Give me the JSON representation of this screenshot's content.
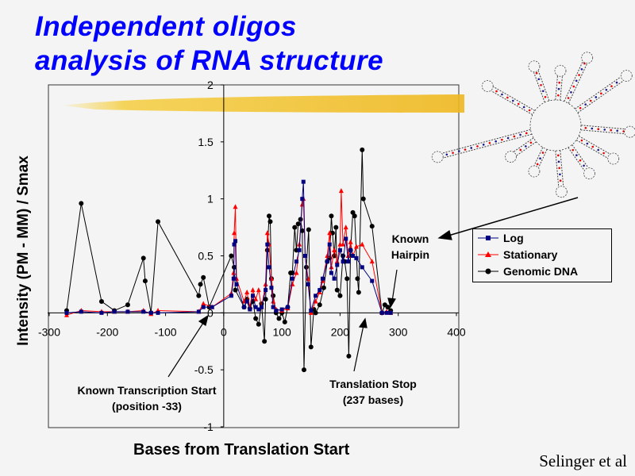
{
  "slide": {
    "title_line1": "Independent oligos",
    "title_line2": "analysis of RNA structure",
    "credit": "Selinger et al"
  },
  "annotations": {
    "transcription_start_line1": "Known Transcription Start",
    "transcription_start_line2": "(position -33)",
    "translation_stop_line1": "Translation Stop",
    "translation_stop_line2": "(237 bases)",
    "hairpin_line1": "Known",
    "hairpin_line2": "Hairpin"
  },
  "colors": {
    "title": "#0000ff",
    "log": "#000080",
    "stationary": "#ff0000",
    "genomic": "#000000",
    "highlight": "#f2c230"
  },
  "chart_data": {
    "type": "line",
    "title": "",
    "xlabel": "Bases from Translation Start",
    "ylabel": "Intensity (PM - MM) / Smax",
    "xlim": [
      -300,
      400
    ],
    "ylim": [
      -1,
      2
    ],
    "xticks": [
      "-300",
      "-200",
      "-100",
      "0",
      "100",
      "200",
      "300",
      "400"
    ],
    "yticks": [
      "2",
      "1.5",
      "1",
      "0.5",
      "0",
      "-0.5",
      "-1"
    ],
    "grid": false,
    "legend_position": "right",
    "series": [
      {
        "name": "Log",
        "marker": "square",
        "color": "#000080",
        "points": [
          [
            -270,
            0
          ],
          [
            -245,
            0.01
          ],
          [
            -210,
            0
          ],
          [
            -188,
            0.01
          ],
          [
            -165,
            0.01
          ],
          [
            -138,
            0.01
          ],
          [
            -125,
            0
          ],
          [
            -113,
            0
          ],
          [
            -43,
            0.01
          ],
          [
            -35,
            0.05
          ],
          [
            -20,
            0.05
          ],
          [
            13,
            0.15
          ],
          [
            17,
            0.3
          ],
          [
            18,
            0.6
          ],
          [
            20,
            0.63
          ],
          [
            22,
            0.25
          ],
          [
            35,
            0.05
          ],
          [
            40,
            0.1
          ],
          [
            45,
            0.03
          ],
          [
            50,
            0.15
          ],
          [
            55,
            0.05
          ],
          [
            60,
            0.03
          ],
          [
            65,
            0.05
          ],
          [
            72,
            0.2
          ],
          [
            75,
            0.6
          ],
          [
            78,
            0.4
          ],
          [
            82,
            0.22
          ],
          [
            85,
            0.05
          ],
          [
            90,
            0.02
          ],
          [
            100,
            0.03
          ],
          [
            110,
            0.05
          ],
          [
            118,
            0.3
          ],
          [
            125,
            0.45
          ],
          [
            130,
            0.55
          ],
          [
            135,
            1.0
          ],
          [
            137,
            1.15
          ],
          [
            140,
            0.5
          ],
          [
            145,
            0.25
          ],
          [
            150,
            0.02
          ],
          [
            158,
            0.15
          ],
          [
            165,
            0.2
          ],
          [
            170,
            0.3
          ],
          [
            178,
            0.45
          ],
          [
            182,
            0.6
          ],
          [
            185,
            0.35
          ],
          [
            190,
            0.3
          ],
          [
            195,
            0.42
          ],
          [
            200,
            0.55
          ],
          [
            205,
            0.45
          ],
          [
            210,
            0.65
          ],
          [
            214,
            0.45
          ],
          [
            218,
            0.55
          ],
          [
            222,
            0.5
          ],
          [
            228,
            0.48
          ],
          [
            238,
            0.4
          ],
          [
            255,
            0.28
          ],
          [
            272,
            0
          ],
          [
            280,
            0
          ],
          [
            287,
            0
          ]
        ]
      },
      {
        "name": "Stationary",
        "marker": "triangle",
        "color": "#ff0000",
        "points": [
          [
            -270,
            -0.02
          ],
          [
            -245,
            0.02
          ],
          [
            -210,
            0.01
          ],
          [
            -188,
            0.01
          ],
          [
            -165,
            0.01
          ],
          [
            -138,
            0.02
          ],
          [
            -125,
            -0.01
          ],
          [
            -113,
            0.02
          ],
          [
            -43,
            0.01
          ],
          [
            -35,
            0.08
          ],
          [
            -20,
            0.05
          ],
          [
            13,
            0.17
          ],
          [
            17,
            0.35
          ],
          [
            18,
            0.7
          ],
          [
            20,
            0.93
          ],
          [
            22,
            0.3
          ],
          [
            35,
            0.1
          ],
          [
            40,
            0.18
          ],
          [
            45,
            0.05
          ],
          [
            50,
            0.2
          ],
          [
            55,
            0.12
          ],
          [
            60,
            0.2
          ],
          [
            65,
            0.05
          ],
          [
            72,
            0.25
          ],
          [
            75,
            0.7
          ],
          [
            78,
            0.6
          ],
          [
            82,
            0.3
          ],
          [
            85,
            0.1
          ],
          [
            90,
            0.03
          ],
          [
            100,
            0.02
          ],
          [
            110,
            0.04
          ],
          [
            118,
            0.25
          ],
          [
            125,
            0.35
          ],
          [
            130,
            0.6
          ],
          [
            135,
            0.95
          ],
          [
            137,
            1.0
          ],
          [
            140,
            0.5
          ],
          [
            145,
            0.3
          ],
          [
            150,
            0.0
          ],
          [
            158,
            0.1
          ],
          [
            165,
            0.18
          ],
          [
            170,
            0.28
          ],
          [
            178,
            0.5
          ],
          [
            182,
            0.7
          ],
          [
            185,
            0.4
          ],
          [
            190,
            0.55
          ],
          [
            195,
            0.45
          ],
          [
            200,
            0.6
          ],
          [
            202,
            1.07
          ],
          [
            205,
            0.6
          ],
          [
            210,
            0.75
          ],
          [
            214,
            0.5
          ],
          [
            218,
            0.62
          ],
          [
            222,
            0.5
          ],
          [
            228,
            0.58
          ],
          [
            238,
            0.6
          ],
          [
            255,
            0.45
          ],
          [
            272,
            0
          ],
          [
            280,
            0.01
          ],
          [
            287,
            0
          ]
        ]
      },
      {
        "name": "Genomic DNA",
        "marker": "circle",
        "color": "#000000",
        "points": [
          [
            -270,
            0.02
          ],
          [
            -245,
            0.96
          ],
          [
            -210,
            0.1
          ],
          [
            -188,
            0.02
          ],
          [
            -165,
            0.07
          ],
          [
            -138,
            0.48
          ],
          [
            -135,
            0.28
          ],
          [
            -125,
            0.0
          ],
          [
            -113,
            0.8
          ],
          [
            -43,
            0.15
          ],
          [
            -40,
            0.25
          ],
          [
            -35,
            0.31
          ],
          [
            -25,
            0.05
          ],
          [
            13,
            0.5
          ],
          [
            18,
            0.4
          ],
          [
            20,
            0.2
          ],
          [
            35,
            0.05
          ],
          [
            40,
            0.12
          ],
          [
            45,
            0.04
          ],
          [
            50,
            0.1
          ],
          [
            55,
            -0.05
          ],
          [
            60,
            -0.1
          ],
          [
            65,
            0.08
          ],
          [
            70,
            -0.25
          ],
          [
            72,
            0.12
          ],
          [
            75,
            0.55
          ],
          [
            78,
            0.85
          ],
          [
            80,
            0.8
          ],
          [
            82,
            0.3
          ],
          [
            85,
            0.15
          ],
          [
            90,
            0.0
          ],
          [
            95,
            -0.05
          ],
          [
            100,
            0.0
          ],
          [
            105,
            -0.08
          ],
          [
            110,
            0.05
          ],
          [
            115,
            0.35
          ],
          [
            118,
            0.35
          ],
          [
            122,
            0.75
          ],
          [
            125,
            0.55
          ],
          [
            128,
            0.78
          ],
          [
            132,
            0.82
          ],
          [
            135,
            0.72
          ],
          [
            138,
            -0.5
          ],
          [
            142,
            0.4
          ],
          [
            146,
            0.73
          ],
          [
            150,
            -0.3
          ],
          [
            155,
            0.03
          ],
          [
            158,
            0.0
          ],
          [
            165,
            0.07
          ],
          [
            172,
            0.22
          ],
          [
            178,
            0.45
          ],
          [
            182,
            0.48
          ],
          [
            185,
            0.85
          ],
          [
            187,
            0.7
          ],
          [
            190,
            0.5
          ],
          [
            193,
            0.75
          ],
          [
            195,
            0.2
          ],
          [
            200,
            0.15
          ],
          [
            205,
            0.5
          ],
          [
            208,
            0.45
          ],
          [
            212,
            0.3
          ],
          [
            215,
            -0.38
          ],
          [
            218,
            0.55
          ],
          [
            222,
            0.88
          ],
          [
            225,
            0.85
          ],
          [
            230,
            0.3
          ],
          [
            232,
            0.18
          ],
          [
            238,
            1.43
          ],
          [
            240,
            1.0
          ],
          [
            255,
            0.76
          ],
          [
            272,
            0.0
          ],
          [
            277,
            0.07
          ],
          [
            282,
            0.05
          ],
          [
            287,
            0.02
          ]
        ]
      }
    ]
  }
}
